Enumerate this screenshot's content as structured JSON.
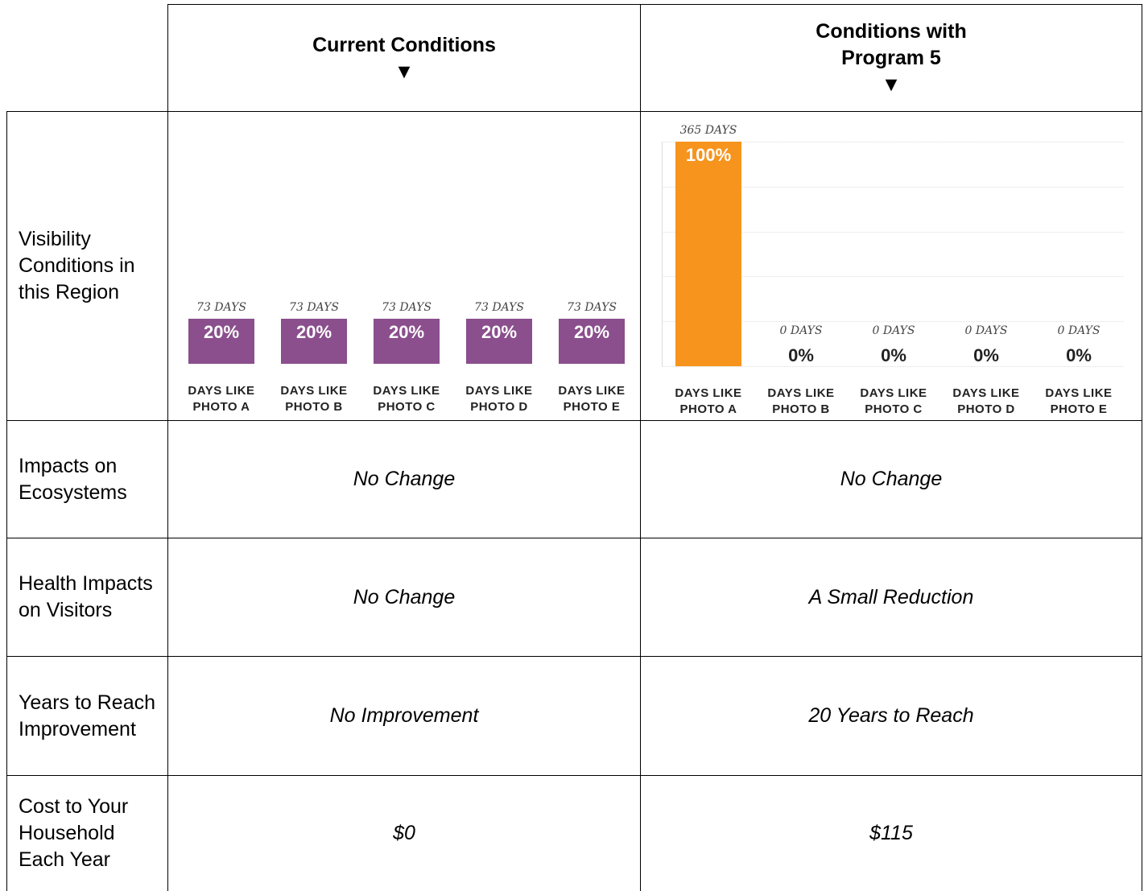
{
  "table": {
    "header": [
      "Current Conditions",
      "Conditions with Program 5"
    ],
    "visibility_label": "Visibility Conditions in this Region",
    "rows": [
      {
        "label": "Impacts on Ecosystems",
        "cells": [
          "No Change",
          "No Change"
        ]
      },
      {
        "label": "Health Impacts on Visitors",
        "cells": [
          "No Change",
          "A Small Reduction"
        ]
      },
      {
        "label": "Years to Reach Improvement",
        "cells": [
          "No Improvement",
          "20 Years to Reach"
        ]
      },
      {
        "label": "Cost to Your Household Each Year",
        "cells": [
          "$0",
          "$115"
        ]
      }
    ]
  },
  "chart_data": [
    {
      "type": "bar",
      "categories": [
        "DAYS LIKE PHOTO A",
        "DAYS LIKE PHOTO B",
        "DAYS LIKE PHOTO C",
        "DAYS LIKE PHOTO D",
        "DAYS LIKE PHOTO E"
      ],
      "values": [
        20,
        20,
        20,
        20,
        20
      ],
      "value_labels": [
        "20%",
        "20%",
        "20%",
        "20%",
        "20%"
      ],
      "day_labels": [
        "73 DAYS",
        "73 DAYS",
        "73 DAYS",
        "73 DAYS",
        "73 DAYS"
      ],
      "color": "#8a4f8c",
      "ylim": [
        0,
        100
      ],
      "grid": false
    },
    {
      "type": "bar",
      "categories": [
        "DAYS LIKE PHOTO A",
        "DAYS LIKE PHOTO B",
        "DAYS LIKE PHOTO C",
        "DAYS LIKE PHOTO D",
        "DAYS LIKE PHOTO E"
      ],
      "values": [
        100,
        0,
        0,
        0,
        0
      ],
      "value_labels": [
        "100%",
        "0%",
        "0%",
        "0%",
        "0%"
      ],
      "day_labels": [
        "365 DAYS",
        "0 DAYS",
        "0 DAYS",
        "0 DAYS",
        "0 DAYS"
      ],
      "color": "#f7941d",
      "ylim": [
        0,
        100
      ],
      "yticks": [
        0,
        20,
        40,
        60,
        80,
        100
      ],
      "grid": true
    }
  ]
}
